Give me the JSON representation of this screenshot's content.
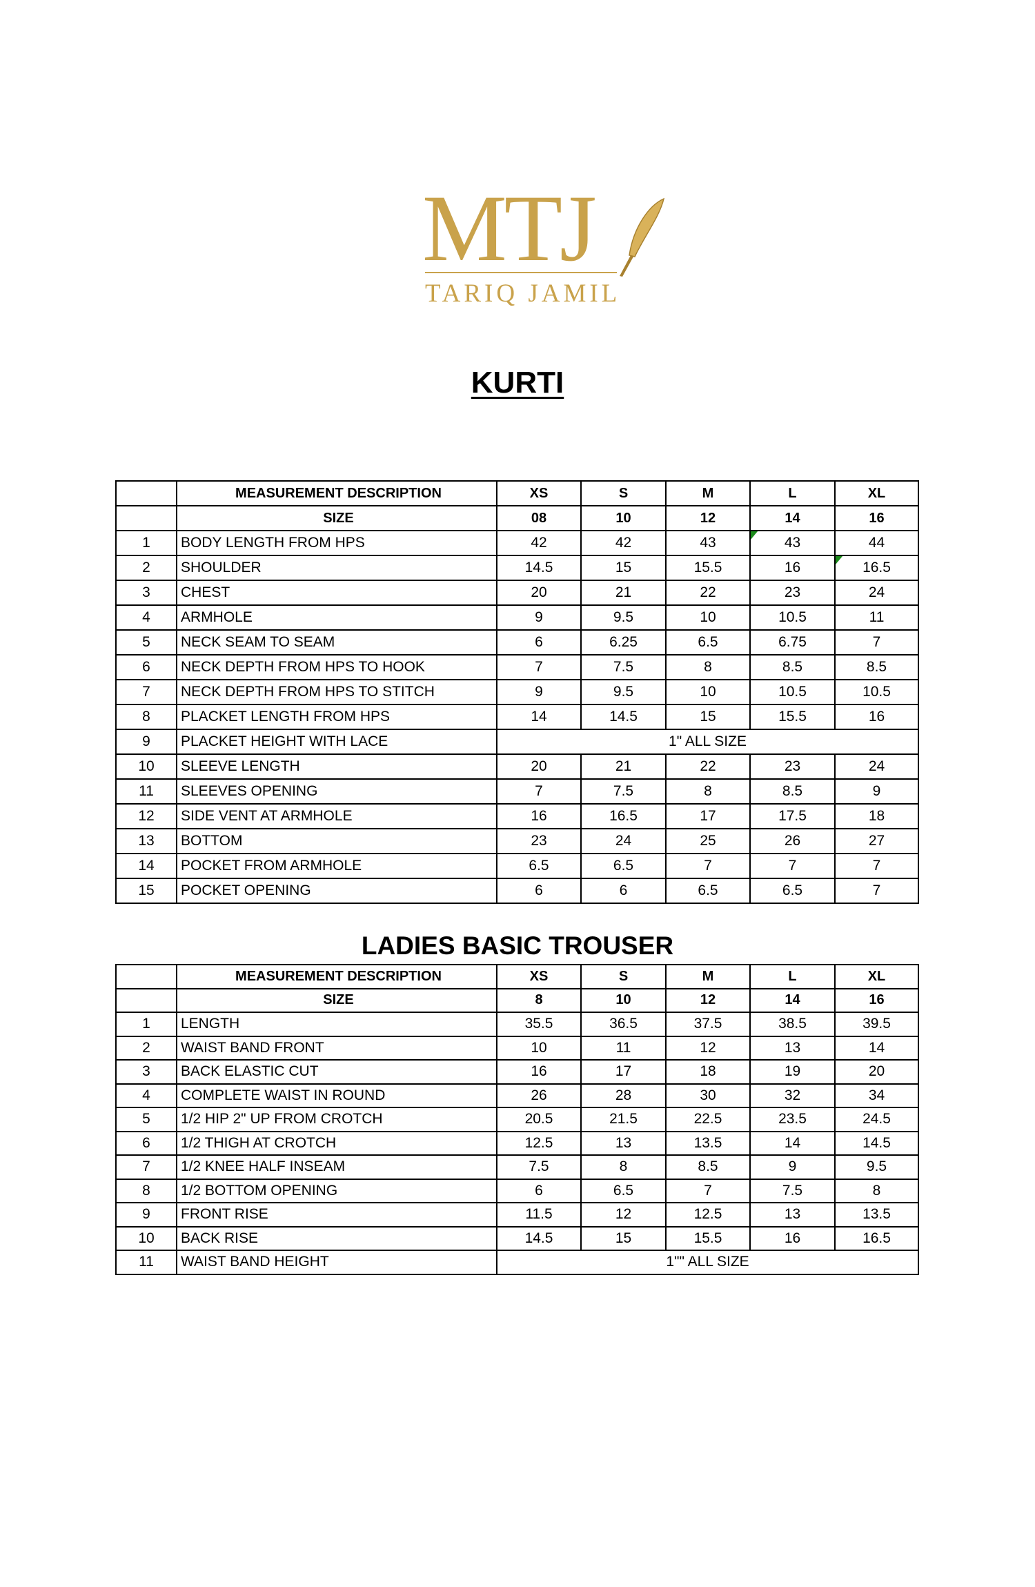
{
  "logo": {
    "mark": "MTJ",
    "name": "TARIQ JAMIL",
    "color": "#c9a24b"
  },
  "kurti": {
    "title": "KURTI",
    "header": [
      "",
      "MEASUREMENT DESCRIPTION",
      "XS",
      "S",
      "M",
      "L",
      "XL"
    ],
    "size_row": [
      "",
      "SIZE",
      "08",
      "10",
      "12",
      "14",
      "16"
    ],
    "rows": [
      [
        "1",
        "BODY LENGTH FROM HPS",
        "42",
        "42",
        "43",
        "43",
        "44"
      ],
      [
        "2",
        "SHOULDER",
        "14.5",
        "15",
        "15.5",
        "16",
        "16.5"
      ],
      [
        "3",
        "CHEST",
        "20",
        "21",
        "22",
        "23",
        "24"
      ],
      [
        "4",
        "ARMHOLE",
        "9",
        "9.5",
        "10",
        "10.5",
        "11"
      ],
      [
        "5",
        "NECK SEAM TO SEAM",
        "6",
        "6.25",
        "6.5",
        "6.75",
        "7"
      ],
      [
        "6",
        "NECK DEPTH FROM HPS TO HOOK",
        "7",
        "7.5",
        "8",
        "8.5",
        "8.5"
      ],
      [
        "7",
        "NECK DEPTH FROM HPS TO STITCH",
        "9",
        "9.5",
        "10",
        "10.5",
        "10.5"
      ],
      [
        "8",
        "PLACKET LENGTH FROM HPS",
        "14",
        "14.5",
        "15",
        "15.5",
        "16"
      ],
      [
        "9",
        "PLACKET HEIGHT WITH LACE",
        "1\" ALL SIZE"
      ],
      [
        "10",
        "SLEEVE LENGTH",
        "20",
        "21",
        "22",
        "23",
        "24"
      ],
      [
        "11",
        "SLEEVES OPENING",
        "7",
        "7.5",
        "8",
        "8.5",
        "9"
      ],
      [
        "12",
        "SIDE VENT AT ARMHOLE",
        "16",
        "16.5",
        "17",
        "17.5",
        "18"
      ],
      [
        "13",
        "BOTTOM",
        "23",
        "24",
        "25",
        "26",
        "27"
      ],
      [
        "14",
        "POCKET FROM ARMHOLE",
        "6.5",
        "6.5",
        "7",
        "7",
        "7"
      ],
      [
        "15",
        "POCKET OPENING",
        "6",
        "6",
        "6.5",
        "6.5",
        "7"
      ]
    ]
  },
  "trouser": {
    "title": "LADIES BASIC  TROUSER",
    "header": [
      "",
      "MEASUREMENT DESCRIPTION",
      "XS",
      "S",
      "M",
      "L",
      "XL"
    ],
    "size_row": [
      "",
      "SIZE",
      "8",
      "10",
      "12",
      "14",
      "16"
    ],
    "rows": [
      [
        "1",
        "LENGTH",
        "35.5",
        "36.5",
        "37.5",
        "38.5",
        "39.5"
      ],
      [
        "2",
        "WAIST BAND FRONT",
        "10",
        "11",
        "12",
        "13",
        "14"
      ],
      [
        "3",
        "BACK ELASTIC CUT",
        "16",
        "17",
        "18",
        "19",
        "20"
      ],
      [
        "4",
        "COMPLETE WAIST IN ROUND",
        "26",
        "28",
        "30",
        "32",
        "34"
      ],
      [
        "5",
        "1/2 HIP 2\" UP FROM CROTCH",
        "20.5",
        "21.5",
        "22.5",
        "23.5",
        "24.5"
      ],
      [
        "6",
        "1/2 THIGH AT CROTCH",
        "12.5",
        "13",
        "13.5",
        "14",
        "14.5"
      ],
      [
        "7",
        "1/2 KNEE HALF INSEAM",
        "7.5",
        "8",
        "8.5",
        "9",
        "9.5"
      ],
      [
        "8",
        "1/2 BOTTOM OPENING",
        "6",
        "6.5",
        "7",
        "7.5",
        "8"
      ],
      [
        "9",
        "FRONT RISE",
        "11.5",
        "12",
        "12.5",
        "13",
        "13.5"
      ],
      [
        "10",
        "BACK RISE",
        "14.5",
        "15",
        "15.5",
        "16",
        "16.5"
      ],
      [
        "11",
        "WAIST BAND HEIGHT",
        "1\"\" ALL SIZE"
      ]
    ]
  }
}
